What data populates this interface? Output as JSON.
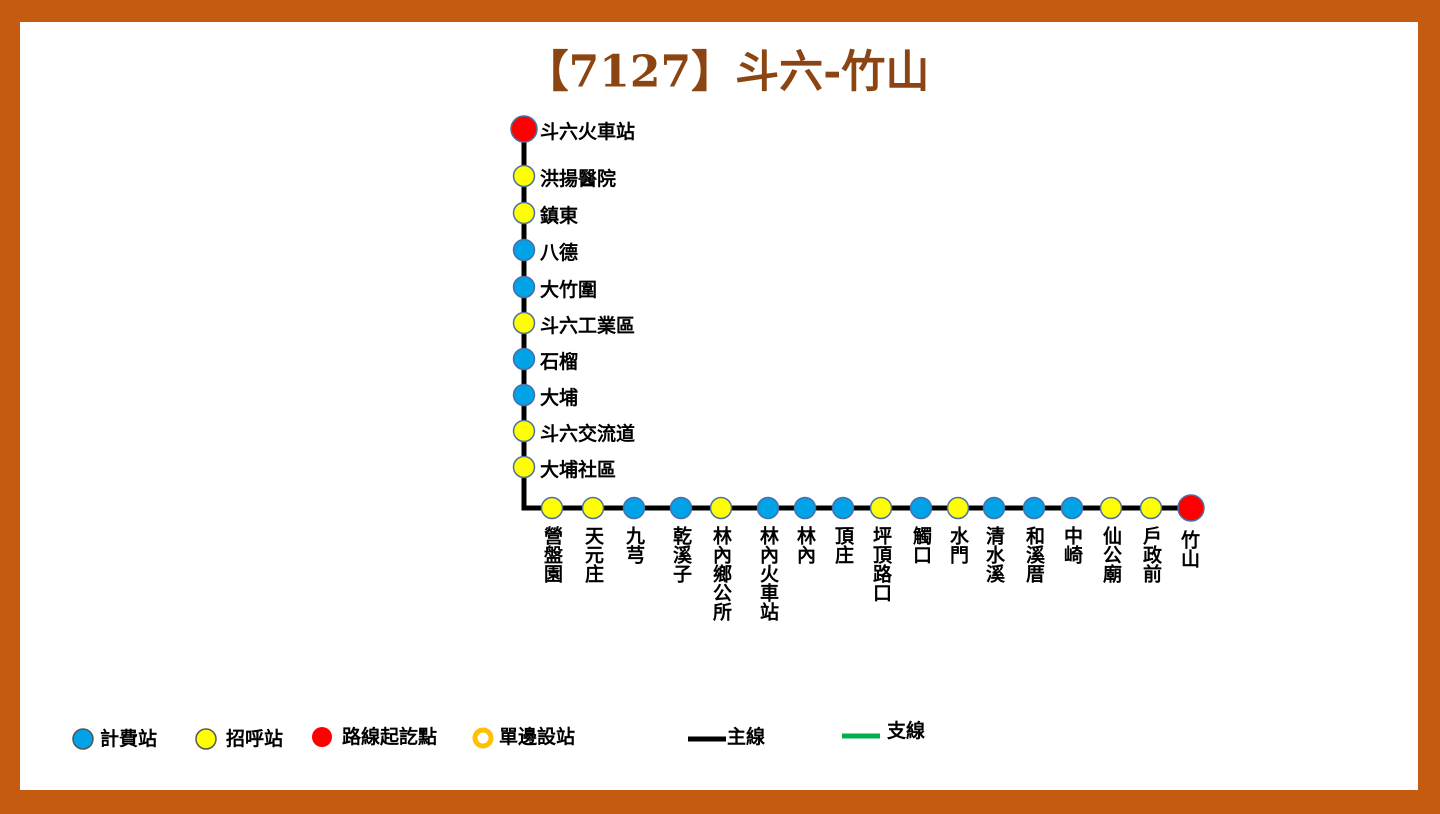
{
  "title": "【7127】斗六-竹山",
  "stops": [
    {
      "name": "斗六火車站",
      "kind": "terminal"
    },
    {
      "name": "洪揚醫院",
      "kind": "call"
    },
    {
      "name": "鎮東",
      "kind": "call"
    },
    {
      "name": "八德",
      "kind": "fee"
    },
    {
      "name": "大竹圍",
      "kind": "fee"
    },
    {
      "name": "斗六工業區",
      "kind": "call"
    },
    {
      "name": "石榴",
      "kind": "fee"
    },
    {
      "name": "大埔",
      "kind": "fee"
    },
    {
      "name": "斗六交流道",
      "kind": "call"
    },
    {
      "name": "大埔社區",
      "kind": "call"
    },
    {
      "name": "營盤園",
      "kind": "call"
    },
    {
      "name": "天元庄",
      "kind": "call"
    },
    {
      "name": "九芎",
      "kind": "fee"
    },
    {
      "name": "乾溪子",
      "kind": "fee"
    },
    {
      "name": "林內鄉公所",
      "kind": "call"
    },
    {
      "name": "林內火車站",
      "kind": "fee"
    },
    {
      "name": "林內",
      "kind": "fee"
    },
    {
      "name": "頂庄",
      "kind": "fee"
    },
    {
      "name": "坪頂路口",
      "kind": "call"
    },
    {
      "name": "觸口",
      "kind": "fee"
    },
    {
      "name": "水門",
      "kind": "call"
    },
    {
      "name": "清水溪",
      "kind": "fee"
    },
    {
      "name": "和溪厝",
      "kind": "fee"
    },
    {
      "name": "中崎",
      "kind": "fee"
    },
    {
      "name": "仙公廟",
      "kind": "call"
    },
    {
      "name": "戶政前",
      "kind": "call"
    },
    {
      "name": "竹山",
      "kind": "terminal"
    }
  ],
  "legend": {
    "fee": "計費站",
    "call": "招呼站",
    "terminal": "路線起訖點",
    "oneside": "單邊設站",
    "main": "主線",
    "branch": "支線"
  }
}
